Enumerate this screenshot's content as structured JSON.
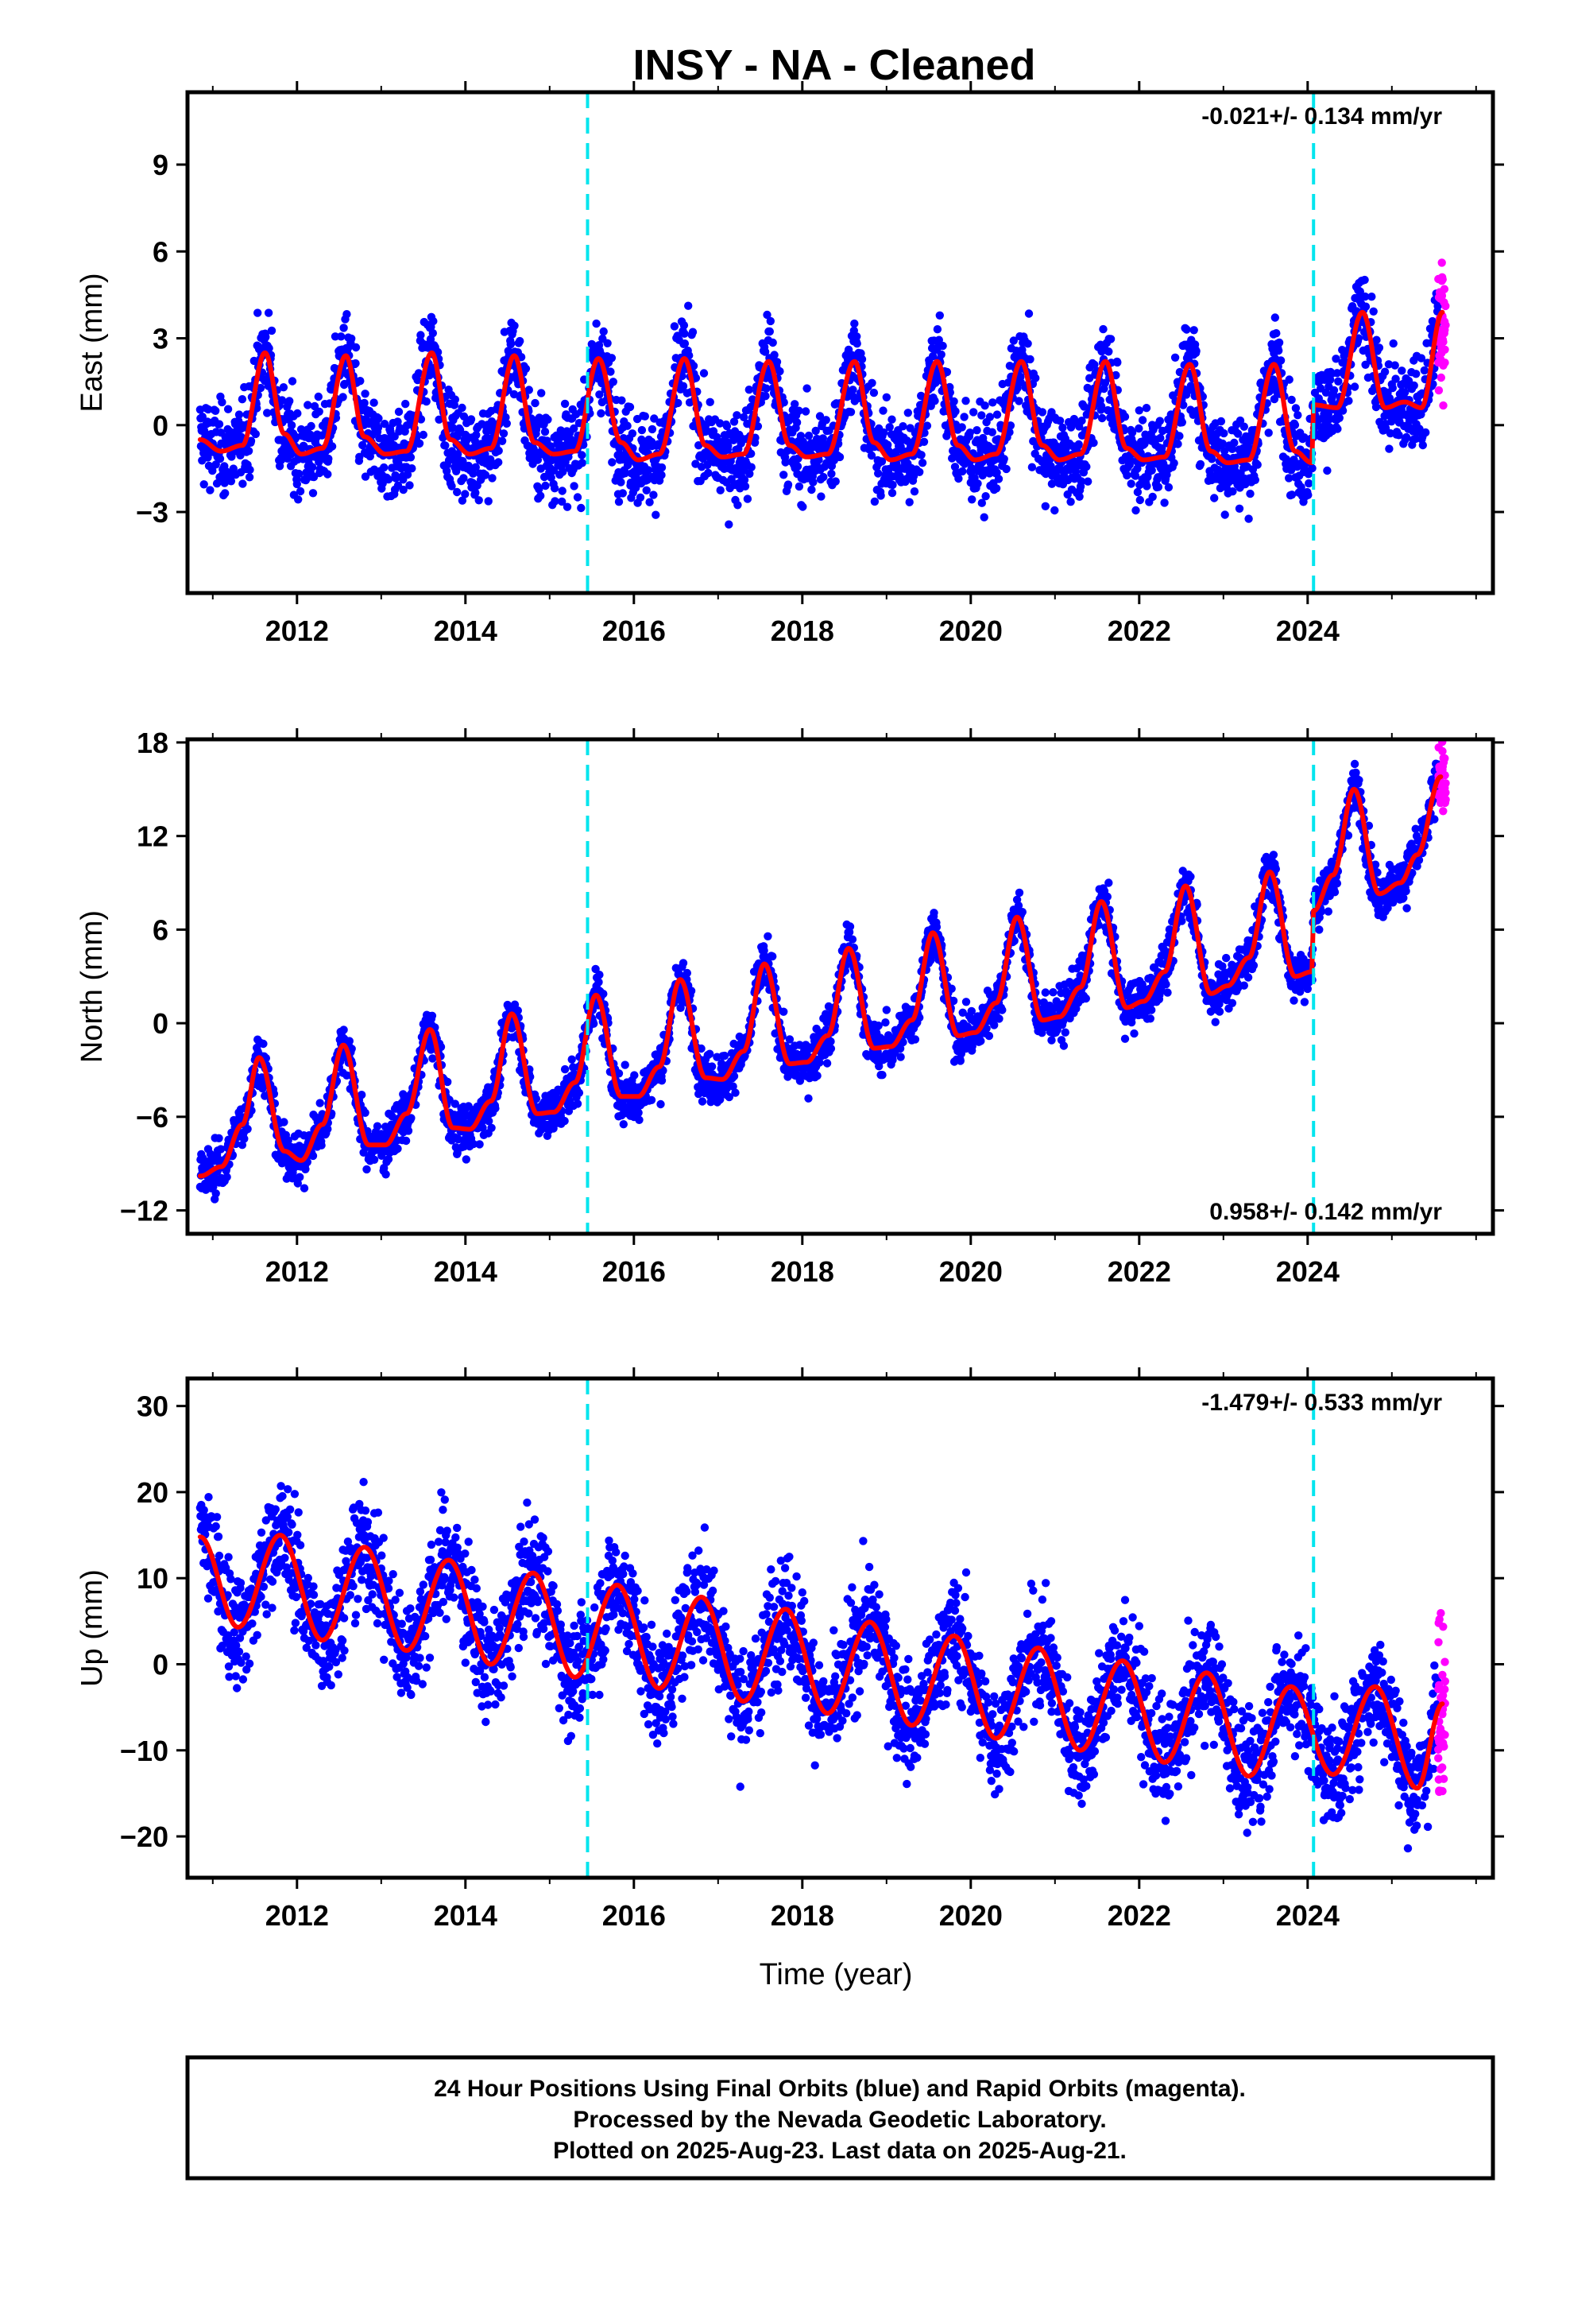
{
  "title": "INSY  - NA - Cleaned",
  "xlabel": "Time (year)",
  "footer": {
    "line1": "24 Hour Positions Using Final Orbits (blue) and Rapid Orbits (magenta).",
    "line2": "Processed by the Nevada Geodetic Laboratory.",
    "line3": "Plotted on 2025-Aug-23. Last data on 2025-Aug-21."
  },
  "colors": {
    "final": "#0000ff",
    "rapid": "#ff00ff",
    "model": "#ff0000",
    "breaks": "#00e5ee",
    "frame": "#000000"
  },
  "chart_data": [
    {
      "type": "scatter",
      "ylabel": "East (mm)",
      "rate": "-0.021+/- 0.134 mm/yr",
      "rate_position": "top-right",
      "xlim": [
        2010.7,
        2026.2
      ],
      "ylim": [
        -5.8,
        11.5
      ],
      "xticks": [
        2012,
        2014,
        2016,
        2018,
        2020,
        2022,
        2024
      ],
      "yticks": [
        -3,
        0,
        3,
        6,
        9
      ],
      "ytick_labels": [
        "−3",
        "0",
        "3",
        "6",
        "9"
      ],
      "breaks": [
        2015.45,
        2024.07
      ],
      "grid": false,
      "series": [
        {
          "style": "blue dots",
          "x_range": [
            2010.85,
            2025.55
          ],
          "points_per_year": 220
        },
        {
          "style": "magenta dots",
          "x_range": [
            2025.55,
            2025.64
          ],
          "points": 40
        },
        {
          "style": "red line",
          "samples": [
            [
              2010.85,
              -0.5
            ],
            [
              2011.1,
              -0.9
            ],
            [
              2011.35,
              -0.7
            ],
            [
              2011.62,
              2.5
            ],
            [
              2011.85,
              -0.3
            ],
            [
              2012.05,
              -1.0
            ],
            [
              2012.3,
              -0.8
            ],
            [
              2012.58,
              2.4
            ],
            [
              2012.8,
              -0.4
            ],
            [
              2013.05,
              -1.0
            ],
            [
              2013.3,
              -0.9
            ],
            [
              2013.6,
              2.5
            ],
            [
              2013.82,
              -0.5
            ],
            [
              2014.05,
              -1.0
            ],
            [
              2014.3,
              -0.8
            ],
            [
              2014.58,
              2.4
            ],
            [
              2014.82,
              -0.6
            ],
            [
              2015.05,
              -1.0
            ],
            [
              2015.3,
              -0.9
            ],
            [
              2015.58,
              2.3
            ],
            [
              2015.85,
              -0.6
            ],
            [
              2016.05,
              -1.2
            ],
            [
              2016.3,
              -1.0
            ],
            [
              2016.6,
              2.3
            ],
            [
              2016.85,
              -0.7
            ],
            [
              2017.05,
              -1.1
            ],
            [
              2017.3,
              -1.0
            ],
            [
              2017.6,
              2.2
            ],
            [
              2017.85,
              -0.7
            ],
            [
              2018.05,
              -1.1
            ],
            [
              2018.3,
              -1.0
            ],
            [
              2018.62,
              2.2
            ],
            [
              2018.85,
              -0.6
            ],
            [
              2019.05,
              -1.2
            ],
            [
              2019.3,
              -1.0
            ],
            [
              2019.6,
              2.2
            ],
            [
              2019.85,
              -0.7
            ],
            [
              2020.05,
              -1.2
            ],
            [
              2020.3,
              -1.0
            ],
            [
              2020.6,
              2.2
            ],
            [
              2020.85,
              -0.7
            ],
            [
              2021.05,
              -1.2
            ],
            [
              2021.3,
              -1.0
            ],
            [
              2021.6,
              2.2
            ],
            [
              2021.85,
              -0.8
            ],
            [
              2022.05,
              -1.2
            ],
            [
              2022.3,
              -1.1
            ],
            [
              2022.6,
              2.1
            ],
            [
              2022.85,
              -0.9
            ],
            [
              2023.05,
              -1.3
            ],
            [
              2023.3,
              -1.2
            ],
            [
              2023.6,
              2.1
            ],
            [
              2023.85,
              -0.9
            ],
            [
              2024.05,
              -1.3
            ],
            [
              2024.07,
              0.7
            ],
            [
              2024.35,
              0.6
            ],
            [
              2024.65,
              3.9
            ],
            [
              2024.92,
              0.6
            ],
            [
              2025.15,
              0.8
            ],
            [
              2025.35,
              0.6
            ],
            [
              2025.6,
              3.9
            ]
          ]
        }
      ]
    },
    {
      "type": "scatter",
      "ylabel": "North (mm)",
      "rate": "0.958+/- 0.142 mm/yr",
      "rate_position": "bottom-right",
      "xlim": [
        2010.7,
        2026.2
      ],
      "ylim": [
        -13.5,
        18.2
      ],
      "xticks": [
        2012,
        2014,
        2016,
        2018,
        2020,
        2022,
        2024
      ],
      "yticks": [
        -12,
        -6,
        0,
        6,
        12,
        18
      ],
      "ytick_labels": [
        "−12",
        "−6",
        "0",
        "6",
        "12",
        "18"
      ],
      "breaks": [
        2015.45,
        2024.07
      ],
      "grid": false,
      "series": [
        {
          "style": "blue dots",
          "x_range": [
            2010.85,
            2025.55
          ],
          "points_per_year": 220
        },
        {
          "style": "magenta dots",
          "x_range": [
            2025.55,
            2025.64
          ],
          "points": 40
        },
        {
          "style": "red line",
          "samples": [
            [
              2010.85,
              -9.8
            ],
            [
              2011.1,
              -9.2
            ],
            [
              2011.35,
              -6.5
            ],
            [
              2011.55,
              -2.2
            ],
            [
              2011.85,
              -8.2
            ],
            [
              2012.05,
              -8.8
            ],
            [
              2012.3,
              -6.5
            ],
            [
              2012.55,
              -1.4
            ],
            [
              2012.85,
              -7.8
            ],
            [
              2013.05,
              -7.8
            ],
            [
              2013.3,
              -5.8
            ],
            [
              2013.58,
              -0.4
            ],
            [
              2013.85,
              -6.7
            ],
            [
              2014.05,
              -6.8
            ],
            [
              2014.3,
              -5.0
            ],
            [
              2014.55,
              0.6
            ],
            [
              2014.85,
              -5.8
            ],
            [
              2015.05,
              -5.7
            ],
            [
              2015.3,
              -3.8
            ],
            [
              2015.55,
              1.8
            ],
            [
              2015.85,
              -4.7
            ],
            [
              2016.05,
              -4.7
            ],
            [
              2016.3,
              -2.8
            ],
            [
              2016.55,
              2.8
            ],
            [
              2016.85,
              -3.5
            ],
            [
              2017.05,
              -3.6
            ],
            [
              2017.3,
              -1.8
            ],
            [
              2017.55,
              3.8
            ],
            [
              2017.85,
              -2.6
            ],
            [
              2018.05,
              -2.5
            ],
            [
              2018.3,
              -0.8
            ],
            [
              2018.55,
              4.8
            ],
            [
              2018.85,
              -1.6
            ],
            [
              2019.05,
              -1.5
            ],
            [
              2019.3,
              0.2
            ],
            [
              2019.55,
              5.8
            ],
            [
              2019.85,
              -0.8
            ],
            [
              2020.05,
              -0.6
            ],
            [
              2020.3,
              1.3
            ],
            [
              2020.55,
              6.8
            ],
            [
              2020.85,
              0.2
            ],
            [
              2021.05,
              0.4
            ],
            [
              2021.3,
              2.3
            ],
            [
              2021.55,
              7.8
            ],
            [
              2021.85,
              1.0
            ],
            [
              2022.05,
              1.4
            ],
            [
              2022.3,
              3.3
            ],
            [
              2022.55,
              8.8
            ],
            [
              2022.85,
              1.9
            ],
            [
              2023.05,
              2.4
            ],
            [
              2023.3,
              4.2
            ],
            [
              2023.55,
              9.7
            ],
            [
              2023.85,
              3.0
            ],
            [
              2024.05,
              3.3
            ],
            [
              2024.07,
              7.2
            ],
            [
              2024.3,
              9.5
            ],
            [
              2024.55,
              15.0
            ],
            [
              2024.85,
              8.3
            ],
            [
              2025.1,
              9.0
            ],
            [
              2025.3,
              10.8
            ],
            [
              2025.58,
              15.8
            ]
          ]
        }
      ]
    },
    {
      "type": "scatter",
      "ylabel": "Up (mm)",
      "rate": "-1.479+/- 0.533 mm/yr",
      "rate_position": "top-right",
      "xlim": [
        2010.7,
        2026.2
      ],
      "ylim": [
        -24.8,
        33.2
      ],
      "xticks": [
        2012,
        2014,
        2016,
        2018,
        2020,
        2022,
        2024
      ],
      "yticks": [
        -20,
        -10,
        0,
        10,
        20,
        30
      ],
      "ytick_labels": [
        "−20",
        "−10",
        "0",
        "10",
        "20",
        "30"
      ],
      "breaks": [
        2015.45,
        2024.07
      ],
      "grid": false,
      "series": [
        {
          "style": "blue dots",
          "x_range": [
            2010.85,
            2025.55
          ],
          "points_per_year": 220
        },
        {
          "style": "magenta dots",
          "x_range": [
            2025.55,
            2025.64
          ],
          "points": 40
        },
        {
          "style": "red line",
          "samples": [
            [
              2010.85,
              14.8
            ],
            [
              2011.3,
              4.3
            ],
            [
              2011.8,
              15.0
            ],
            [
              2012.3,
              2.8
            ],
            [
              2012.8,
              13.6
            ],
            [
              2013.3,
              1.6
            ],
            [
              2013.8,
              12.1
            ],
            [
              2014.3,
              0.0
            ],
            [
              2014.8,
              10.6
            ],
            [
              2015.3,
              -1.5
            ],
            [
              2015.8,
              9.2
            ],
            [
              2016.3,
              -2.8
            ],
            [
              2016.8,
              7.8
            ],
            [
              2017.3,
              -4.3
            ],
            [
              2017.8,
              6.4
            ],
            [
              2018.3,
              -5.7
            ],
            [
              2018.8,
              4.9
            ],
            [
              2019.3,
              -7.1
            ],
            [
              2019.8,
              3.3
            ],
            [
              2020.3,
              -8.6
            ],
            [
              2020.8,
              1.9
            ],
            [
              2021.3,
              -10.0
            ],
            [
              2021.8,
              0.4
            ],
            [
              2022.3,
              -11.4
            ],
            [
              2022.8,
              -1.0
            ],
            [
              2023.3,
              -13.0
            ],
            [
              2023.8,
              -2.6
            ],
            [
              2024.3,
              -12.8
            ],
            [
              2024.8,
              -2.6
            ],
            [
              2025.3,
              -14.4
            ],
            [
              2025.6,
              -4.6
            ]
          ]
        }
      ]
    }
  ]
}
